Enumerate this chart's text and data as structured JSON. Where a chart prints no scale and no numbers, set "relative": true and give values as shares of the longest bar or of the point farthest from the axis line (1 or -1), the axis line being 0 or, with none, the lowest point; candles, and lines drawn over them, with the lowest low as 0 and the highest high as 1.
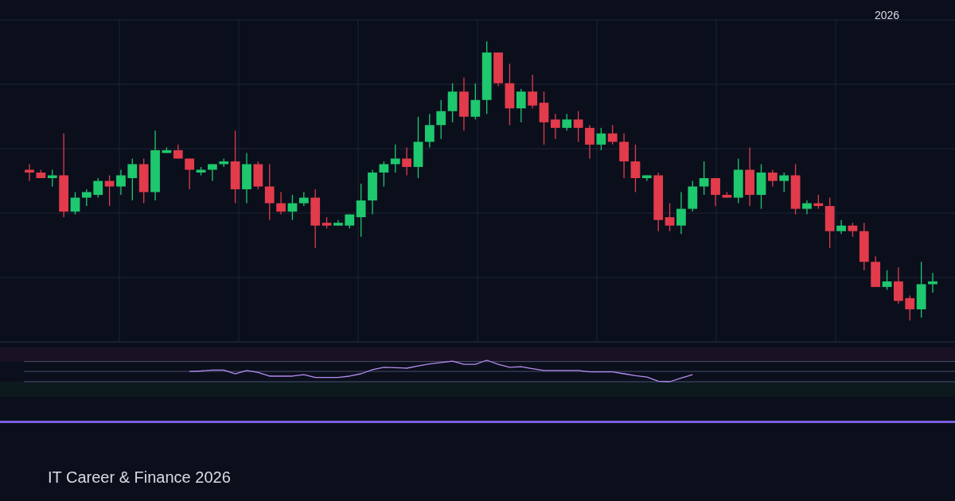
{
  "chart_data": [
    {
      "type": "candlestick",
      "relative": true,
      "grid": true,
      "categories": [
        null,
        null,
        null,
        null,
        null,
        null,
        null,
        null,
        null,
        null,
        null,
        null,
        null,
        null,
        null,
        null,
        null,
        null,
        null,
        null,
        null,
        null,
        null,
        null,
        null,
        null,
        null,
        null,
        null,
        null,
        null,
        null,
        null,
        null,
        null,
        null,
        null,
        null,
        null,
        null,
        null,
        null,
        null,
        null,
        null,
        null,
        null,
        null,
        null,
        null,
        null,
        null,
        null,
        null,
        null,
        null,
        null,
        null,
        null,
        null,
        null,
        null,
        null,
        null,
        null,
        null,
        null,
        null,
        null,
        null,
        null,
        null,
        null,
        null,
        null,
        "2026",
        null,
        null,
        null,
        null
      ],
      "ohlc": [
        [
          0.54,
          0.56,
          0.5,
          0.53
        ],
        [
          0.53,
          0.54,
          0.51,
          0.51
        ],
        [
          0.51,
          0.54,
          0.48,
          0.52
        ],
        [
          0.52,
          0.67,
          0.37,
          0.39
        ],
        [
          0.39,
          0.46,
          0.38,
          0.44
        ],
        [
          0.44,
          0.47,
          0.41,
          0.46
        ],
        [
          0.45,
          0.51,
          0.44,
          0.5
        ],
        [
          0.5,
          0.52,
          0.41,
          0.48
        ],
        [
          0.48,
          0.54,
          0.45,
          0.52
        ],
        [
          0.51,
          0.58,
          0.43,
          0.56
        ],
        [
          0.56,
          0.58,
          0.42,
          0.46
        ],
        [
          0.46,
          0.68,
          0.43,
          0.61
        ],
        [
          0.6,
          0.62,
          0.6,
          0.61
        ],
        [
          0.61,
          0.63,
          0.58,
          0.58
        ],
        [
          0.58,
          0.58,
          0.47,
          0.54
        ],
        [
          0.53,
          0.55,
          0.52,
          0.54
        ],
        [
          0.54,
          0.56,
          0.5,
          0.56
        ],
        [
          0.56,
          0.58,
          0.55,
          0.57
        ],
        [
          0.57,
          0.68,
          0.42,
          0.47
        ],
        [
          0.47,
          0.6,
          0.42,
          0.56
        ],
        [
          0.56,
          0.57,
          0.47,
          0.48
        ],
        [
          0.48,
          0.56,
          0.36,
          0.42
        ],
        [
          0.42,
          0.46,
          0.38,
          0.39
        ],
        [
          0.39,
          0.45,
          0.36,
          0.42
        ],
        [
          0.42,
          0.46,
          0.41,
          0.44
        ],
        [
          0.44,
          0.47,
          0.26,
          0.34
        ],
        [
          0.35,
          0.37,
          0.33,
          0.34
        ],
        [
          0.34,
          0.36,
          0.34,
          0.35
        ],
        [
          0.34,
          0.38,
          0.33,
          0.38
        ],
        [
          0.37,
          0.49,
          0.3,
          0.43
        ],
        [
          0.43,
          0.54,
          0.38,
          0.53
        ],
        [
          0.53,
          0.57,
          0.48,
          0.56
        ],
        [
          0.56,
          0.63,
          0.53,
          0.58
        ],
        [
          0.58,
          0.62,
          0.52,
          0.55
        ],
        [
          0.55,
          0.73,
          0.51,
          0.64
        ],
        [
          0.64,
          0.74,
          0.62,
          0.7
        ],
        [
          0.7,
          0.79,
          0.65,
          0.75
        ],
        [
          0.75,
          0.85,
          0.71,
          0.82
        ],
        [
          0.82,
          0.87,
          0.68,
          0.73
        ],
        [
          0.73,
          0.85,
          0.72,
          0.79
        ],
        [
          0.79,
          1,
          0.74,
          0.96
        ],
        [
          0.96,
          0.96,
          0.84,
          0.85
        ],
        [
          0.85,
          0.92,
          0.7,
          0.76
        ],
        [
          0.76,
          0.83,
          0.71,
          0.82
        ],
        [
          0.82,
          0.88,
          0.76,
          0.77
        ],
        [
          0.78,
          0.82,
          0.63,
          0.71
        ],
        [
          0.72,
          0.74,
          0.65,
          0.69
        ],
        [
          0.69,
          0.74,
          0.68,
          0.72
        ],
        [
          0.72,
          0.75,
          0.64,
          0.69
        ],
        [
          0.69,
          0.7,
          0.58,
          0.63
        ],
        [
          0.63,
          0.69,
          0.61,
          0.67
        ],
        [
          0.67,
          0.7,
          0.63,
          0.64
        ],
        [
          0.64,
          0.67,
          0.51,
          0.57
        ],
        [
          0.57,
          0.63,
          0.46,
          0.51
        ],
        [
          0.51,
          0.52,
          0.5,
          0.52
        ],
        [
          0.52,
          0.53,
          0.32,
          0.36
        ],
        [
          0.37,
          0.42,
          0.32,
          0.34
        ],
        [
          0.34,
          0.46,
          0.31,
          0.4
        ],
        [
          0.4,
          0.5,
          0.39,
          0.48
        ],
        [
          0.48,
          0.57,
          0.45,
          0.51
        ],
        [
          0.51,
          0.51,
          0.41,
          0.45
        ],
        [
          0.45,
          0.46,
          0.44,
          0.44
        ],
        [
          0.44,
          0.58,
          0.42,
          0.54
        ],
        [
          0.54,
          0.62,
          0.41,
          0.45
        ],
        [
          0.45,
          0.56,
          0.4,
          0.53
        ],
        [
          0.53,
          0.54,
          0.48,
          0.5
        ],
        [
          0.5,
          0.53,
          0.46,
          0.52
        ],
        [
          0.52,
          0.56,
          0.38,
          0.4
        ],
        [
          0.4,
          0.43,
          0.38,
          0.42
        ],
        [
          0.42,
          0.45,
          0.4,
          0.41
        ],
        [
          0.41,
          0.44,
          0.26,
          0.32
        ],
        [
          0.32,
          0.36,
          0.31,
          0.34
        ],
        [
          0.34,
          0.35,
          0.3,
          0.32
        ],
        [
          0.32,
          0.35,
          0.18,
          0.21
        ],
        [
          0.21,
          0.23,
          0.12,
          0.12
        ],
        [
          0.12,
          0.18,
          0.11,
          0.14
        ],
        [
          0.14,
          0.19,
          0.06,
          0.07
        ],
        [
          0.08,
          0.09,
          0,
          0.04
        ],
        [
          0.04,
          0.21,
          0.01,
          0.13
        ],
        [
          0.13,
          0.17,
          0.1,
          0.14
        ]
      ],
      "colors": [
        "#e23b4b",
        "#e23b4b",
        "#1ec86e",
        "#e23b4b",
        "#1ec86e",
        "#1ec86e",
        "#1ec86e",
        "#e23b4b",
        "#1ec86e",
        "#1ec86e",
        "#e23b4b",
        "#1ec86e",
        "#1ec86e",
        "#e23b4b",
        "#e23b4b",
        "#1ec86e",
        "#1ec86e",
        "#1ec86e",
        "#e23b4b",
        "#1ec86e",
        "#e23b4b",
        "#e23b4b",
        "#e23b4b",
        "#1ec86e",
        "#1ec86e",
        "#e23b4b",
        "#e23b4b",
        "#1ec86e",
        "#1ec86e",
        "#1ec86e",
        "#1ec86e",
        "#1ec86e",
        "#1ec86e",
        "#e23b4b",
        "#1ec86e",
        "#1ec86e",
        "#1ec86e",
        "#1ec86e",
        "#e23b4b",
        "#1ec86e",
        "#1ec86e",
        "#e23b4b",
        "#e23b4b",
        "#1ec86e",
        "#e23b4b",
        "#e23b4b",
        "#e23b4b",
        "#1ec86e",
        "#e23b4b",
        "#e23b4b",
        "#1ec86e",
        "#e23b4b",
        "#e23b4b",
        "#e23b4b",
        "#1ec86e",
        "#e23b4b",
        "#e23b4b",
        "#1ec86e",
        "#1ec86e",
        "#1ec86e",
        "#e23b4b",
        "#e23b4b",
        "#1ec86e",
        "#e23b4b",
        "#1ec86e",
        "#e23b4b",
        "#1ec86e",
        "#e23b4b",
        "#1ec86e",
        "#e23b4b",
        "#e23b4b",
        "#1ec86e",
        "#e23b4b",
        "#e23b4b",
        "#e23b4b",
        "#1ec86e",
        "#e23b4b",
        "#e23b4b",
        "#1ec86e",
        "#1ec86e"
      ],
      "annotations": [
        "IT Career & Finance 2026"
      ]
    },
    {
      "type": "line",
      "relative": true,
      "categories": [
        null,
        null,
        null,
        null,
        null,
        null,
        null,
        null,
        null,
        null,
        null,
        null,
        null,
        null,
        null,
        null,
        null,
        null,
        null,
        null,
        null,
        null,
        null,
        null,
        null,
        null,
        null,
        null,
        null,
        null,
        null,
        null,
        null,
        null,
        null,
        null,
        null,
        null,
        null,
        null,
        null,
        null,
        null,
        null,
        null,
        null,
        null,
        null,
        null,
        null,
        null,
        null,
        null,
        null,
        null,
        null,
        null,
        null,
        null,
        null,
        null,
        null,
        null,
        null,
        null,
        null,
        null,
        null,
        null,
        null,
        null,
        null,
        null,
        null,
        null,
        null,
        null,
        null,
        null,
        null
      ],
      "series": [
        {
          "color": "#b48cf0",
          "values": [
            null,
            null,
            null,
            null,
            null,
            null,
            null,
            null,
            null,
            null,
            null,
            null,
            null,
            null,
            0.48,
            0.5,
            0.54,
            0.54,
            0.37,
            0.52,
            0.43,
            0.26,
            0.26,
            0.26,
            0.33,
            0.2,
            0.2,
            0.2,
            0.26,
            0.37,
            0.56,
            0.67,
            0.65,
            0.63,
            0.74,
            0.83,
            0.89,
            0.96,
            0.81,
            0.81,
            1,
            0.81,
            0.67,
            0.7,
            0.61,
            0.52,
            0.52,
            0.52,
            0.52,
            0.46,
            0.46,
            0.46,
            0.37,
            0.28,
            0.22,
            0.02,
            0,
            0.17,
            0.33,
            null,
            null,
            null,
            null,
            null,
            null,
            null,
            null,
            null,
            null,
            null,
            null,
            null,
            null,
            null,
            null,
            null,
            null,
            null,
            null,
            null
          ]
        }
      ],
      "ref_lines": [
        {
          "axis": "y",
          "value": 0.94,
          "color": "#4a5070"
        },
        {
          "axis": "y",
          "value": 0.48,
          "color": "#4a5070"
        },
        {
          "axis": "y",
          "value": 0,
          "color": "#4a5070"
        }
      ],
      "bands": [
        {
          "axis": "y",
          "from": 0.94,
          "to": 1.6,
          "color": "#1a1222"
        },
        {
          "axis": "y",
          "from": -0.7,
          "to": 0,
          "color": "#0c1a1e"
        }
      ]
    }
  ]
}
